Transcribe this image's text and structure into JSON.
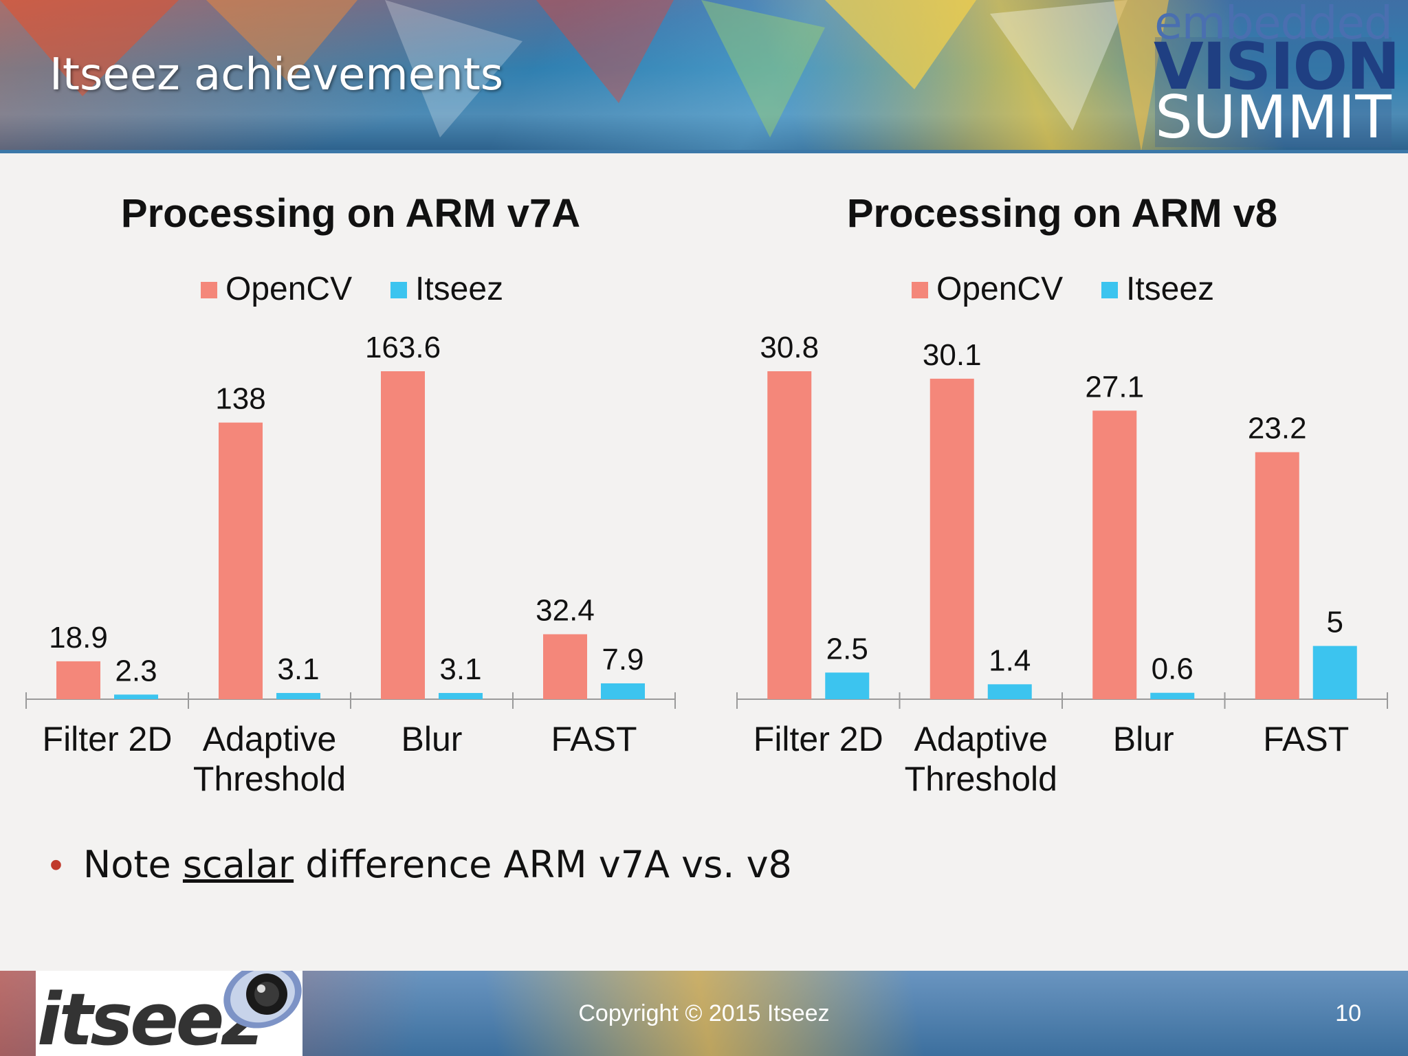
{
  "slide": {
    "title": "Itseez achievements",
    "bullet_prefix": "Note ",
    "bullet_underlined": "scalar",
    "bullet_suffix": " difference ARM v7A vs. v8",
    "copyright": "Copyright © 2015 Itseez",
    "page_number": "10"
  },
  "logos": {
    "summit_line1": "embedded",
    "summit_line2": "VISION",
    "summit_line3": "SUMMIT",
    "company": "itseez"
  },
  "colors": {
    "opencv": "#f4877a",
    "itseez": "#3cc4ef"
  },
  "chart_data": [
    {
      "type": "bar",
      "title": "Processing on ARM v7A",
      "categories": [
        [
          "Filter 2D"
        ],
        [
          "Adaptive",
          "Threshold"
        ],
        [
          "Blur"
        ],
        [
          "FAST"
        ]
      ],
      "series": [
        {
          "name": "OpenCV",
          "values": [
            18.9,
            138,
            163.6,
            32.4
          ],
          "labels": [
            "18.9",
            "138",
            "163.6",
            "32.4"
          ]
        },
        {
          "name": "Itseez",
          "values": [
            2.3,
            3.1,
            3.1,
            7.9
          ],
          "labels": [
            "2.3",
            "3.1",
            "3.1",
            "7.9"
          ]
        }
      ],
      "legend": "top-center",
      "ylim": [
        0,
        163.6
      ],
      "xlabel": "",
      "ylabel": ""
    },
    {
      "type": "bar",
      "title": "Processing on ARM v8",
      "categories": [
        [
          "Filter 2D"
        ],
        [
          "Adaptive",
          "Threshold"
        ],
        [
          "Blur"
        ],
        [
          "FAST"
        ]
      ],
      "series": [
        {
          "name": "OpenCV",
          "values": [
            30.8,
            30.1,
            27.1,
            23.2
          ],
          "labels": [
            "30.8",
            "30.1",
            "27.1",
            "23.2"
          ]
        },
        {
          "name": "Itseez",
          "values": [
            2.5,
            1.4,
            0.6,
            5
          ],
          "labels": [
            "2.5",
            "1.4",
            "0.6",
            "5"
          ]
        }
      ],
      "legend": "top-center",
      "ylim": [
        0,
        30.8
      ],
      "xlabel": "",
      "ylabel": ""
    }
  ]
}
